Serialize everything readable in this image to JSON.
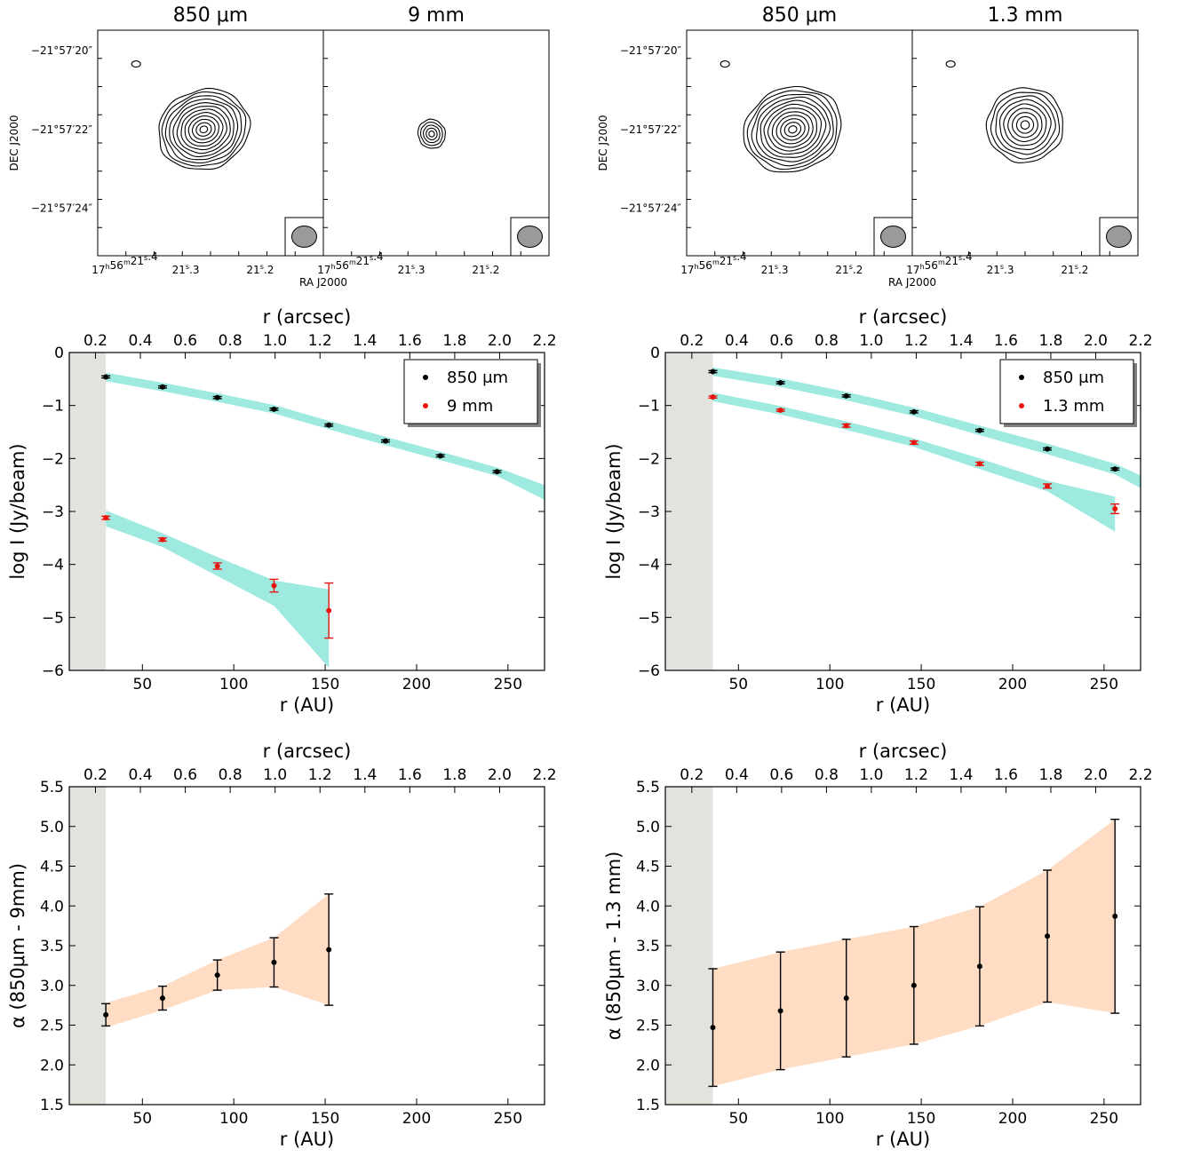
{
  "contour_maps": [
    {
      "dec_axis_label": "DEC J2000",
      "ra_axis_label": "RA J2000",
      "dec_ticks": [
        "−21°57′20″",
        "−21°57′22″",
        "−21°57′24″"
      ],
      "panels": [
        {
          "title": "850 μm",
          "ra_ticks": [
            "17h56m21s.4",
            "21s.3",
            "21s.2"
          ],
          "levels": 12,
          "core": [
            0.47,
            0.44
          ],
          "size": [
            0.41,
            0.35
          ],
          "spot": true
        },
        {
          "title": "9 mm",
          "ra_ticks": [
            "17h56m21s.4",
            "21s.3",
            "21s.2"
          ],
          "levels": 5,
          "core": [
            0.48,
            0.46
          ],
          "size": [
            0.12,
            0.13
          ],
          "spot": false
        }
      ]
    },
    {
      "dec_axis_label": "DEC J2000",
      "ra_axis_label": "RA J2000",
      "dec_ticks": [
        "−21°57′20″",
        "−21°57′22″",
        "−21°57′24″"
      ],
      "panels": [
        {
          "title": "850 μm",
          "ra_ticks": [
            "17h56m21s.4",
            "21s.3",
            "21s.2"
          ],
          "levels": 12,
          "core": [
            0.47,
            0.44
          ],
          "size": [
            0.44,
            0.37
          ],
          "spot": true
        },
        {
          "title": "1.3 mm",
          "ra_ticks": [
            "17h56m21s.4",
            "21s.3",
            "21s.2"
          ],
          "levels": 9,
          "core": [
            0.5,
            0.42
          ],
          "size": [
            0.34,
            0.33
          ],
          "spot": true
        }
      ]
    }
  ],
  "chart_data": [
    {
      "type": "line",
      "xlabel": "r (AU)",
      "x2label": "r (arcsec)",
      "ylabel": "log I (Jy/beam)",
      "xlim": [
        10,
        270
      ],
      "ylim": [
        -6,
        0
      ],
      "xticks": [
        50,
        100,
        150,
        200,
        250
      ],
      "yticks": [
        0,
        -1,
        -2,
        -3,
        -4,
        -5,
        -6
      ],
      "x2lim": [
        0.0834,
        2.2
      ],
      "x2ticks": [
        0.2,
        0.4,
        0.6,
        0.8,
        1.0,
        1.2,
        1.4,
        1.6,
        1.8,
        2.0,
        2.2
      ],
      "shaded_region": [
        10,
        30
      ],
      "legend_position": "top-right",
      "series": [
        {
          "name": "850 μm",
          "color": "#000000",
          "band_color": "#9eeae0",
          "x": [
            30,
            61,
            91,
            122,
            152,
            183,
            213,
            244
          ],
          "y": [
            -0.46,
            -0.65,
            -0.85,
            -1.07,
            -1.37,
            -1.67,
            -1.95,
            -2.25
          ],
          "err": [
            0.02,
            0.02,
            0.02,
            0.02,
            0.02,
            0.02,
            0.02,
            0.02
          ],
          "band_x": [
            30,
            61,
            91,
            122,
            152,
            183,
            213,
            244,
            270
          ],
          "band_low": [
            -0.54,
            -0.73,
            -0.93,
            -1.15,
            -1.45,
            -1.75,
            -2.03,
            -2.33,
            -2.78
          ],
          "band_high": [
            -0.38,
            -0.57,
            -0.77,
            -0.99,
            -1.29,
            -1.59,
            -1.87,
            -2.17,
            -2.5
          ]
        },
        {
          "name": "9 mm",
          "color": "#e8150e",
          "band_color": "#9eeae0",
          "x": [
            30,
            61,
            91,
            122,
            152
          ],
          "y": [
            -3.12,
            -3.53,
            -4.03,
            -4.4,
            -4.87
          ],
          "err": [
            0.03,
            0.03,
            0.06,
            0.12,
            0.52
          ],
          "band_x": [
            30,
            61,
            91,
            122,
            152
          ],
          "band_low": [
            -3.28,
            -3.67,
            -4.22,
            -4.78,
            -5.95
          ],
          "band_high": [
            -2.98,
            -3.41,
            -3.86,
            -4.3,
            -4.47
          ]
        }
      ]
    },
    {
      "type": "line",
      "xlabel": "r (AU)",
      "x2label": "r (arcsec)",
      "ylabel": "log I (Jy/beam)",
      "xlim": [
        10,
        270
      ],
      "ylim": [
        -6,
        0
      ],
      "xticks": [
        50,
        100,
        150,
        200,
        250
      ],
      "yticks": [
        0,
        -1,
        -2,
        -3,
        -4,
        -5,
        -6
      ],
      "x2lim": [
        0.0819,
        2.2
      ],
      "x2ticks": [
        0.2,
        0.4,
        0.6,
        0.8,
        1.0,
        1.2,
        1.4,
        1.6,
        1.8,
        2.0,
        2.2
      ],
      "shaded_region": [
        10,
        36
      ],
      "legend_position": "top-right",
      "series": [
        {
          "name": "850 μm",
          "color": "#000000",
          "band_color": "#9eeae0",
          "x": [
            36,
            73,
            109,
            146,
            182,
            219,
            256
          ],
          "y": [
            -0.36,
            -0.57,
            -0.82,
            -1.12,
            -1.47,
            -1.82,
            -2.2
          ],
          "err": [
            0.02,
            0.02,
            0.02,
            0.02,
            0.02,
            0.02,
            0.02
          ],
          "band_x": [
            36,
            73,
            109,
            146,
            182,
            219,
            256,
            270
          ],
          "band_low": [
            -0.44,
            -0.65,
            -0.9,
            -1.2,
            -1.56,
            -1.92,
            -2.3,
            -2.56
          ],
          "band_high": [
            -0.28,
            -0.49,
            -0.74,
            -1.04,
            -1.38,
            -1.72,
            -2.1,
            -2.32
          ]
        },
        {
          "name": "1.3 mm",
          "color": "#e8150e",
          "band_color": "#9eeae0",
          "x": [
            36,
            73,
            109,
            146,
            182,
            219,
            256
          ],
          "y": [
            -0.84,
            -1.09,
            -1.38,
            -1.7,
            -2.1,
            -2.52,
            -2.95
          ],
          "err": [
            0.02,
            0.02,
            0.03,
            0.03,
            0.03,
            0.04,
            0.09
          ],
          "band_x": [
            36,
            73,
            109,
            146,
            182,
            219,
            256
          ],
          "band_low": [
            -0.92,
            -1.17,
            -1.46,
            -1.78,
            -2.2,
            -2.62,
            -3.38
          ],
          "band_high": [
            -0.76,
            -1.01,
            -1.3,
            -1.62,
            -2.0,
            -2.42,
            -2.72
          ]
        }
      ]
    },
    {
      "type": "line",
      "xlabel": "r (AU)",
      "x2label": "r (arcsec)",
      "ylabel": "α (850μm - 9mm)",
      "xlim": [
        10,
        270
      ],
      "ylim": [
        1.5,
        5.5
      ],
      "xticks": [
        50,
        100,
        150,
        200,
        250
      ],
      "yticks": [
        1.5,
        2.0,
        2.5,
        3.0,
        3.5,
        4.0,
        4.5,
        5.0,
        5.5
      ],
      "x2lim": [
        0.0834,
        2.2
      ],
      "x2ticks": [
        0.2,
        0.4,
        0.6,
        0.8,
        1.0,
        1.2,
        1.4,
        1.6,
        1.8,
        2.0,
        2.2
      ],
      "shaded_region": [
        10,
        30
      ],
      "series": [
        {
          "color": "#000000",
          "band_color": "#ffdcc4",
          "x": [
            30,
            61,
            91,
            122,
            152
          ],
          "y": [
            2.63,
            2.84,
            3.13,
            3.29,
            3.45
          ],
          "err": [
            0.14,
            0.15,
            0.19,
            0.31,
            0.7
          ],
          "band_x": [
            30,
            61,
            91,
            122,
            152
          ],
          "band_low": [
            2.47,
            2.69,
            2.94,
            2.98,
            2.75
          ],
          "band_high": [
            2.78,
            2.99,
            3.32,
            3.6,
            4.15
          ]
        }
      ]
    },
    {
      "type": "line",
      "xlabel": "r (AU)",
      "x2label": "r (arcsec)",
      "ylabel": "α (850μm - 1.3 mm)",
      "xlim": [
        10,
        270
      ],
      "ylim": [
        1.5,
        5.5
      ],
      "xticks": [
        50,
        100,
        150,
        200,
        250
      ],
      "yticks": [
        1.5,
        2.0,
        2.5,
        3.0,
        3.5,
        4.0,
        4.5,
        5.0,
        5.5
      ],
      "x2lim": [
        0.0819,
        2.2
      ],
      "x2ticks": [
        0.2,
        0.4,
        0.6,
        0.8,
        1.0,
        1.2,
        1.4,
        1.6,
        1.8,
        2.0,
        2.2
      ],
      "shaded_region": [
        10,
        36
      ],
      "series": [
        {
          "color": "#000000",
          "band_color": "#ffdcc4",
          "x": [
            36,
            73,
            109,
            146,
            182,
            219,
            256
          ],
          "y": [
            2.47,
            2.68,
            2.84,
            3.0,
            3.24,
            3.62,
            3.87
          ],
          "err": [
            0.74,
            0.74,
            0.74,
            0.74,
            0.75,
            0.83,
            1.22
          ],
          "band_x": [
            36,
            73,
            109,
            146,
            182,
            219,
            256
          ],
          "band_low": [
            1.73,
            1.94,
            2.1,
            2.26,
            2.49,
            2.79,
            2.65
          ],
          "band_high": [
            3.21,
            3.42,
            3.58,
            3.74,
            3.99,
            4.45,
            5.09
          ]
        }
      ]
    }
  ]
}
